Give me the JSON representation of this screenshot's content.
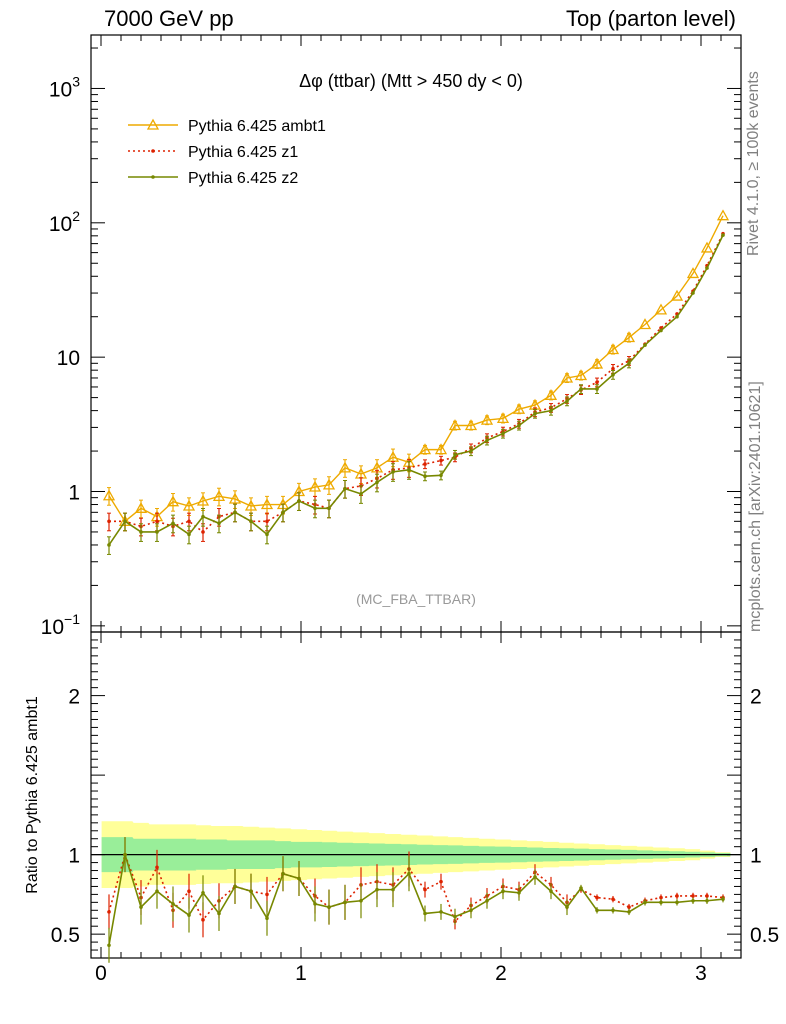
{
  "header": {
    "left": "7000 GeV pp",
    "right": "Top (parton level)"
  },
  "side_labels": {
    "rivet": "Rivet 4.1.0, ≥ 100k events",
    "mcplots": "mcplots.cern.ch [arXiv:2401.10621]"
  },
  "colors": {
    "ambt1": "#eeaa00",
    "z1": "#dd2200",
    "z2": "#778800",
    "band_inner": "#99ee99",
    "band_outer": "#ffff99"
  },
  "chart_data": [
    {
      "type": "line",
      "scale": "log",
      "title": "Δφ (ttbar) (Mtt > 450 dy < 0)",
      "watermark": "(MC_FBA_TTBAR)",
      "xlim": [
        -0.05,
        3.2
      ],
      "ylim": [
        0.09,
        2500
      ],
      "ytick_labels": [
        "10^-1",
        "1",
        "10",
        "10^2",
        "10^3"
      ],
      "xtick_labels": [
        "0",
        "1",
        "2",
        "3"
      ],
      "x": [
        0.04,
        0.12,
        0.2,
        0.28,
        0.36,
        0.44,
        0.51,
        0.59,
        0.67,
        0.75,
        0.83,
        0.91,
        0.99,
        1.07,
        1.14,
        1.22,
        1.3,
        1.38,
        1.46,
        1.54,
        1.62,
        1.7,
        1.77,
        1.85,
        1.93,
        2.01,
        2.09,
        2.17,
        2.25,
        2.33,
        2.4,
        2.48,
        2.56,
        2.64,
        2.72,
        2.8,
        2.88,
        2.96,
        3.03,
        3.11
      ],
      "series": [
        {
          "name": "Pythia 6.425 ambt1",
          "key": "ambt1",
          "marker": "triangle",
          "values": [
            0.93,
            0.6,
            0.75,
            0.65,
            0.84,
            0.78,
            0.85,
            0.92,
            0.88,
            0.78,
            0.8,
            0.8,
            1.0,
            1.08,
            1.12,
            1.5,
            1.35,
            1.5,
            1.8,
            1.65,
            2.05,
            2.05,
            3.1,
            3.1,
            3.4,
            3.5,
            4.1,
            4.4,
            5.2,
            7.0,
            7.3,
            8.9,
            11.4,
            14.0,
            17.5,
            22.5,
            28.5,
            42.0,
            65.0,
            113.0
          ]
        },
        {
          "name": "Pythia 6.425 z1",
          "key": "z1",
          "marker": "dot",
          "values": [
            0.6,
            0.6,
            0.55,
            0.6,
            0.55,
            0.6,
            0.5,
            0.65,
            0.7,
            0.6,
            0.6,
            0.7,
            0.85,
            0.8,
            0.75,
            1.05,
            1.1,
            1.25,
            1.45,
            1.5,
            1.6,
            1.7,
            1.8,
            2.1,
            2.5,
            2.8,
            3.2,
            3.9,
            4.2,
            4.9,
            5.7,
            6.5,
            8.2,
            9.4,
            12.5,
            16.5,
            21.0,
            31.0,
            48.0,
            83.0
          ]
        },
        {
          "name": "Pythia 6.425 z2",
          "key": "z2",
          "marker": "dot",
          "values": [
            0.4,
            0.6,
            0.5,
            0.5,
            0.58,
            0.48,
            0.65,
            0.58,
            0.7,
            0.6,
            0.48,
            0.7,
            0.85,
            0.75,
            0.75,
            1.05,
            0.96,
            1.17,
            1.4,
            1.45,
            1.3,
            1.32,
            1.88,
            2.0,
            2.4,
            2.7,
            3.1,
            3.8,
            4.0,
            4.7,
            5.8,
            5.8,
            7.4,
            9.0,
            12.3,
            15.8,
            20.0,
            30.0,
            46.0,
            81.0
          ]
        }
      ]
    },
    {
      "type": "line",
      "title": "",
      "ylabel": "Ratio to Pythia 6.425 ambt1",
      "xlim": [
        -0.05,
        3.2
      ],
      "ylim": [
        0.35,
        2.4
      ],
      "ytick_labels": [
        "0.5",
        "1",
        "2"
      ],
      "xtick_labels": [
        "0",
        "1",
        "2",
        "3"
      ],
      "band_inner": [
        0.11,
        0.11,
        0.1,
        0.1,
        0.1,
        0.1,
        0.095,
        0.095,
        0.09,
        0.09,
        0.09,
        0.085,
        0.08,
        0.08,
        0.078,
        0.075,
        0.072,
        0.07,
        0.068,
        0.065,
        0.062,
        0.06,
        0.058,
        0.055,
        0.052,
        0.05,
        0.048,
        0.045,
        0.042,
        0.04,
        0.038,
        0.035,
        0.032,
        0.03,
        0.027,
        0.024,
        0.021,
        0.018,
        0.014,
        0.01
      ],
      "band_outer": [
        0.21,
        0.21,
        0.2,
        0.19,
        0.19,
        0.19,
        0.185,
        0.18,
        0.18,
        0.175,
        0.17,
        0.165,
        0.16,
        0.155,
        0.15,
        0.145,
        0.14,
        0.135,
        0.13,
        0.125,
        0.12,
        0.115,
        0.11,
        0.105,
        0.1,
        0.095,
        0.09,
        0.085,
        0.08,
        0.075,
        0.07,
        0.065,
        0.06,
        0.055,
        0.05,
        0.045,
        0.04,
        0.035,
        0.025,
        0.015
      ],
      "series": [
        {
          "name": "Pythia 6.425 z1",
          "key": "z1",
          "values": [
            0.64,
            1.0,
            0.73,
            0.92,
            0.65,
            0.77,
            0.59,
            0.71,
            0.8,
            0.77,
            0.75,
            0.88,
            0.85,
            0.74,
            0.67,
            0.7,
            0.81,
            0.83,
            0.81,
            0.91,
            0.78,
            0.83,
            0.58,
            0.68,
            0.74,
            0.8,
            0.78,
            0.89,
            0.81,
            0.7,
            0.78,
            0.73,
            0.72,
            0.67,
            0.71,
            0.73,
            0.74,
            0.74,
            0.74,
            0.73
          ]
        },
        {
          "name": "Pythia 6.425 z2",
          "key": "z2",
          "values": [
            0.43,
            1.0,
            0.67,
            0.77,
            0.69,
            0.62,
            0.76,
            0.63,
            0.8,
            0.77,
            0.6,
            0.88,
            0.85,
            0.69,
            0.67,
            0.7,
            0.71,
            0.78,
            0.78,
            0.88,
            0.63,
            0.64,
            0.61,
            0.65,
            0.71,
            0.77,
            0.76,
            0.86,
            0.77,
            0.67,
            0.79,
            0.65,
            0.65,
            0.64,
            0.7,
            0.7,
            0.7,
            0.71,
            0.71,
            0.72
          ]
        }
      ]
    }
  ]
}
